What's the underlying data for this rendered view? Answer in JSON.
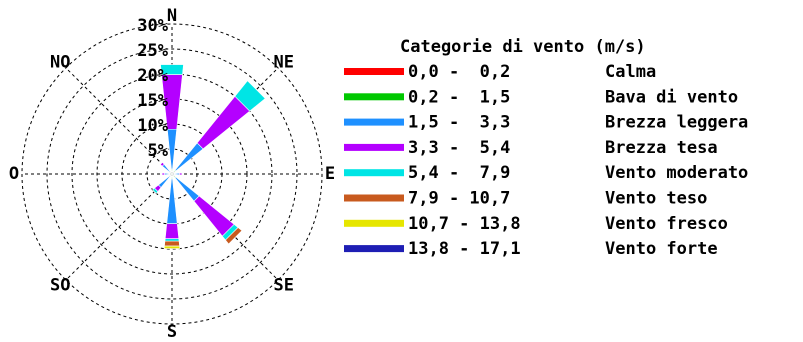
{
  "chart_data": {
    "type": "windrose",
    "legend_title": "Categorie di vento (m/s)",
    "categories": [
      "N",
      "NE",
      "E",
      "SE",
      "S",
      "SO",
      "O",
      "NO"
    ],
    "rlim": [
      0,
      30
    ],
    "rticks": [
      {
        "value": 5,
        "label": "5%"
      },
      {
        "value": 10,
        "label": "10%"
      },
      {
        "value": 15,
        "label": "15%"
      },
      {
        "value": 20,
        "label": "20%"
      },
      {
        "value": 25,
        "label": "25%"
      },
      {
        "value": 30,
        "label": "30%"
      }
    ],
    "grid": true,
    "series": [
      {
        "name": "Calma",
        "range": "0,0 -  0,2",
        "color": "#ff0000",
        "values": [
          0,
          0,
          0,
          0,
          0,
          0,
          0,
          0
        ]
      },
      {
        "name": "Bava di vento",
        "range": "0,2 -  1,5",
        "color": "#00c800",
        "values": [
          1,
          1,
          0.5,
          1,
          1,
          0.5,
          0.5,
          0.5
        ]
      },
      {
        "name": "Brezza leggera",
        "range": "1,5 -  3,3",
        "color": "#1e90ff",
        "values": [
          8,
          7,
          1,
          6,
          9,
          3,
          1,
          2
        ]
      },
      {
        "name": "Brezza tesa",
        "range": "3,3 -  5,4",
        "color": "#b400ff",
        "values": [
          11,
          12,
          0.5,
          9,
          3,
          1,
          0.5,
          0.5
        ]
      },
      {
        "name": "Vento moderato",
        "range": "5,4 -  7,9",
        "color": "#00e5e5",
        "values": [
          2,
          4,
          0,
          1,
          0.5,
          0.5,
          0,
          0
        ]
      },
      {
        "name": "Vento teso",
        "range": "7,9 - 10,7",
        "color": "#c85a1e",
        "values": [
          0,
          0,
          0,
          1,
          1,
          0,
          0,
          0
        ]
      },
      {
        "name": "Vento fresco",
        "range": "10,7 - 13,8",
        "color": "#e6e600",
        "values": [
          0,
          0,
          0,
          0,
          0.5,
          0,
          0,
          0
        ]
      },
      {
        "name": "Vento forte",
        "range": "13,8 - 17,1",
        "color": "#1e1eb4",
        "values": [
          0,
          0,
          0,
          0,
          0,
          0,
          0,
          0
        ]
      }
    ]
  }
}
